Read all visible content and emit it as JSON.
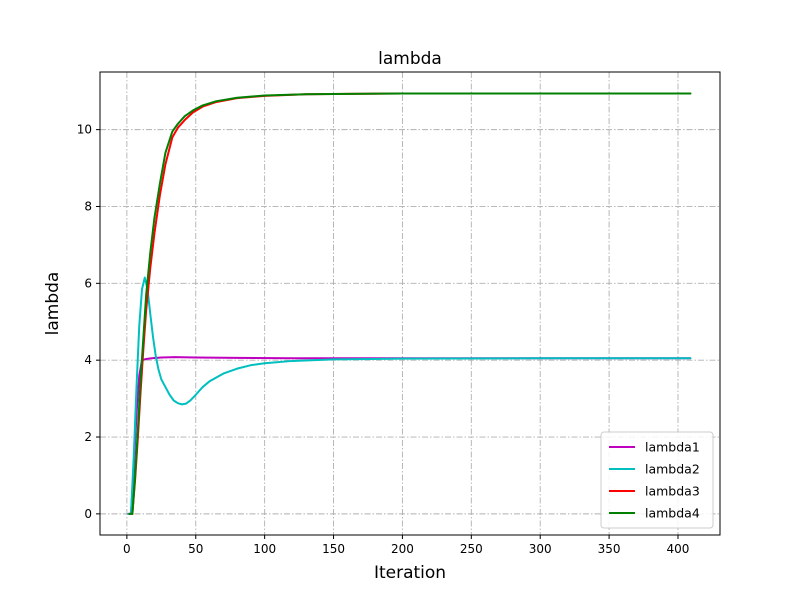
{
  "chart_data": {
    "type": "line",
    "title": "lambda",
    "xlabel": "Iteration",
    "ylabel": "lambda",
    "xlim": [
      -19.5,
      430.5
    ],
    "ylim": [
      -0.55,
      11.5
    ],
    "xticks": [
      0,
      50,
      100,
      150,
      200,
      250,
      300,
      350,
      400
    ],
    "yticks": [
      0,
      2,
      4,
      6,
      8,
      10
    ],
    "grid": true,
    "legend_position": "lower-right",
    "series": [
      {
        "name": "lambda1",
        "color": "#bf00bf",
        "x": [
          1,
          3,
          5,
          7,
          9,
          11,
          14,
          18,
          25,
          35,
          50,
          80,
          120,
          150,
          200,
          300,
          409
        ],
        "y": [
          0,
          0,
          1.2,
          2.6,
          3.6,
          4.0,
          4.03,
          4.05,
          4.07,
          4.08,
          4.07,
          4.06,
          4.05,
          4.05,
          4.05,
          4.05,
          4.05
        ]
      },
      {
        "name": "lambda2",
        "color": "#00bfbf",
        "x": [
          1,
          3,
          5,
          7,
          9,
          11,
          13,
          15,
          17,
          19,
          21,
          23,
          25,
          28,
          31,
          34,
          37,
          40,
          43,
          46,
          50,
          55,
          60,
          70,
          80,
          90,
          100,
          120,
          150,
          200,
          300,
          409
        ],
        "y": [
          0,
          0,
          1.5,
          3.3,
          4.9,
          5.85,
          6.15,
          5.85,
          5.2,
          4.6,
          4.1,
          3.75,
          3.5,
          3.3,
          3.1,
          2.95,
          2.88,
          2.85,
          2.87,
          2.95,
          3.1,
          3.3,
          3.45,
          3.65,
          3.78,
          3.87,
          3.92,
          3.98,
          4.02,
          4.04,
          4.05,
          4.05
        ]
      },
      {
        "name": "lambda3",
        "color": "#ff0000",
        "x": [
          2,
          4,
          6,
          8,
          10,
          12,
          14,
          17,
          20,
          24,
          28,
          33,
          37,
          42,
          48,
          55,
          65,
          80,
          100,
          130,
          160,
          200,
          300,
          409
        ],
        "y": [
          0,
          0,
          0.9,
          2.0,
          3.2,
          4.3,
          5.3,
          6.4,
          7.3,
          8.3,
          9.1,
          9.8,
          10.05,
          10.25,
          10.45,
          10.6,
          10.72,
          10.82,
          10.88,
          10.92,
          10.93,
          10.94,
          10.94,
          10.94
        ]
      },
      {
        "name": "lambda4",
        "color": "#008000",
        "x": [
          2,
          4,
          6,
          8,
          10,
          12,
          14,
          17,
          20,
          24,
          28,
          33,
          37,
          42,
          48,
          55,
          65,
          80,
          100,
          130,
          160,
          200,
          300,
          409
        ],
        "y": [
          0,
          0,
          1.0,
          2.2,
          3.5,
          4.6,
          5.7,
          6.8,
          7.7,
          8.6,
          9.4,
          9.95,
          10.15,
          10.35,
          10.5,
          10.63,
          10.74,
          10.83,
          10.89,
          10.92,
          10.93,
          10.94,
          10.94,
          10.94
        ]
      }
    ]
  }
}
